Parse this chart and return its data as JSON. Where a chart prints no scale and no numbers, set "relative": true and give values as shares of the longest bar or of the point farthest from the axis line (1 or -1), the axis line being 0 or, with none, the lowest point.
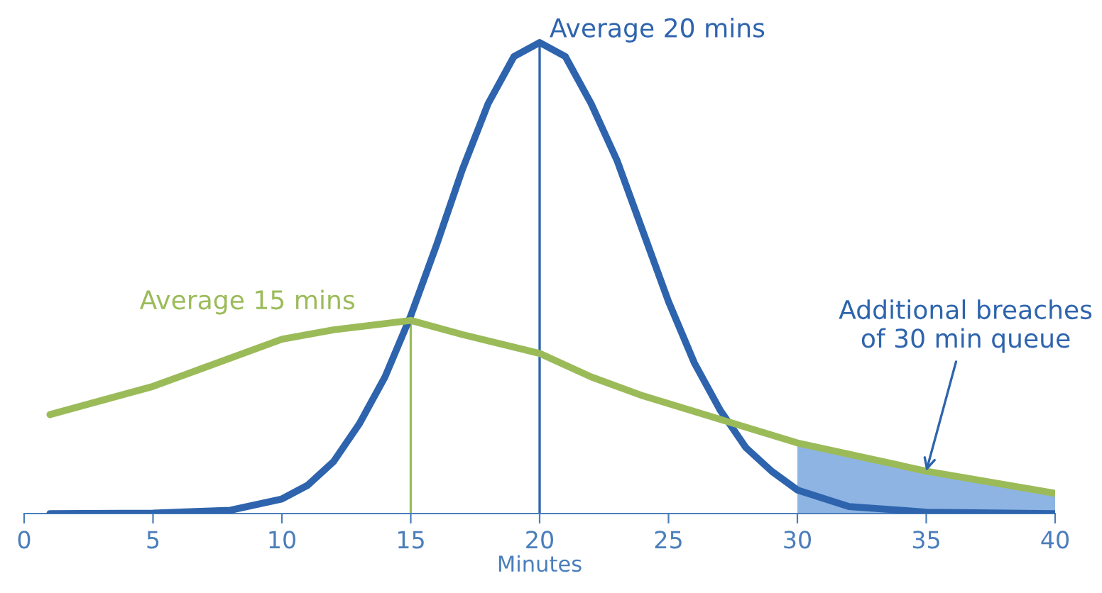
{
  "chart_data": {
    "type": "line",
    "relative": true,
    "xlabel": "Minutes",
    "xlim": [
      0,
      40
    ],
    "xticks": [
      0,
      5,
      10,
      15,
      20,
      25,
      30,
      35,
      40
    ],
    "legend": false,
    "grid": false,
    "series": [
      {
        "color": "#2e64ad",
        "x": [
          1,
          5,
          8,
          10,
          11,
          12,
          13,
          14,
          15,
          16,
          17,
          18,
          19,
          20,
          21,
          22,
          23,
          24,
          25,
          26,
          27,
          28,
          29,
          30,
          32,
          35,
          40
        ],
        "values": [
          0,
          0.001,
          0.007,
          0.031,
          0.06,
          0.11,
          0.19,
          0.29,
          0.42,
          0.57,
          0.73,
          0.87,
          0.97,
          1,
          0.97,
          0.87,
          0.75,
          0.6,
          0.45,
          0.32,
          0.22,
          0.14,
          0.09,
          0.05,
          0.015,
          0.003,
          0
        ]
      },
      {
        "color": "#9bbb59",
        "x": [
          1,
          5,
          7,
          10,
          12,
          15,
          17,
          20,
          22,
          24,
          27,
          30,
          35,
          40
        ],
        "values": [
          0.21,
          0.27,
          0.31,
          0.37,
          0.39,
          0.41,
          0.38,
          0.34,
          0.29,
          0.25,
          0.2,
          0.15,
          0.09,
          0.043
        ]
      },
      {
        "type": "area",
        "color": "#8eb4e3",
        "x": [
          30,
          35,
          40
        ],
        "values": [
          0.15,
          0.09,
          0.043
        ]
      }
    ],
    "ref_lines": [
      {
        "axis": "x",
        "value": 15,
        "color": "#9bbb59"
      },
      {
        "axis": "x",
        "value": 20,
        "color": "#2e64ad"
      }
    ],
    "annotations": [
      {
        "text": "Average 20 mins",
        "x": 20,
        "y": 1
      },
      {
        "text": "Average 15 mins",
        "x": 15,
        "y": 0.41
      },
      {
        "text": "Additional breaches\nof 30 min queue",
        "x": 35,
        "y": 0.09
      }
    ]
  }
}
